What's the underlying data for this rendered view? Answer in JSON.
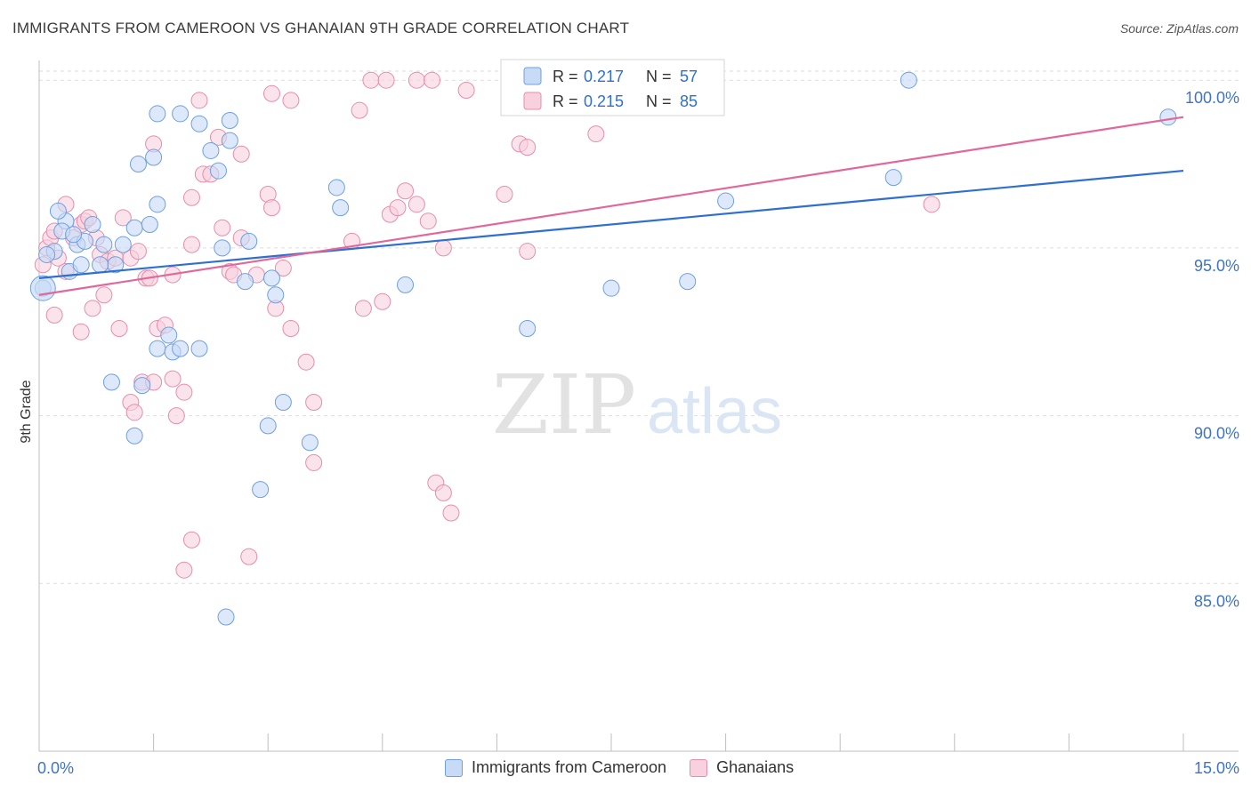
{
  "header": {
    "title": "IMMIGRANTS FROM CAMEROON VS GHANAIAN 9TH GRADE CORRELATION CHART",
    "source": "Source: ZipAtlas.com"
  },
  "watermark": {
    "zip": "ZIP",
    "atlas": "atlas"
  },
  "legend": {
    "r_label": "R =",
    "n_label": "N =",
    "rows": [
      {
        "r": "0.217",
        "n": "57"
      },
      {
        "r": "0.215",
        "n": "85"
      }
    ]
  },
  "bottom_legend": {
    "blue_label": "Immigrants from Cameroon",
    "pink_label": "Ghanaians"
  },
  "colors": {
    "blue_fill": "#c7dbf7",
    "blue_stroke": "#6f9fe0",
    "blue_line": "#2f6fcf",
    "pink_fill": "#f9d0dd",
    "pink_stroke": "#e58eaa",
    "pink_line": "#e0689a",
    "axis_text": "#3f73c8",
    "grid": "#dddddd"
  },
  "chart_data": {
    "type": "scatter",
    "title": "IMMIGRANTS FROM CAMEROON VS GHANAIAN 9TH GRADE CORRELATION CHART",
    "xlabel": "",
    "ylabel": "9th Grade",
    "xlim": [
      0,
      15
    ],
    "ylim": [
      80,
      100.8
    ],
    "x_tick_labels": [
      "0.0%",
      "15.0%"
    ],
    "y_ticks": [
      85,
      90,
      95,
      100
    ],
    "y_tick_labels": [
      "85.0%",
      "90.0%",
      "95.0%",
      "100.0%"
    ],
    "grid": true,
    "legend_position": "top-center",
    "series": [
      {
        "name": "Immigrants from Cameroon",
        "r": 0.217,
        "n": 57,
        "trend": [
          [
            0,
            94.1
          ],
          [
            15,
            97.3
          ]
        ],
        "points": [
          [
            0.05,
            93.8
          ],
          [
            0.2,
            94.9
          ],
          [
            0.35,
            95.8
          ],
          [
            0.5,
            95.1
          ],
          [
            0.6,
            95.2
          ],
          [
            0.25,
            96.1
          ],
          [
            0.4,
            94.3
          ],
          [
            0.55,
            94.5
          ],
          [
            0.3,
            95.5
          ],
          [
            0.7,
            95.7
          ],
          [
            0.85,
            95.1
          ],
          [
            1.0,
            94.5
          ],
          [
            1.1,
            95.1
          ],
          [
            1.25,
            95.6
          ],
          [
            0.8,
            94.5
          ],
          [
            1.45,
            95.7
          ],
          [
            1.55,
            96.3
          ],
          [
            1.5,
            97.7
          ],
          [
            1.3,
            97.5
          ],
          [
            1.55,
            99.0
          ],
          [
            1.85,
            99.0
          ],
          [
            2.1,
            98.7
          ],
          [
            2.25,
            97.9
          ],
          [
            2.35,
            97.3
          ],
          [
            2.5,
            98.2
          ],
          [
            2.5,
            98.8
          ],
          [
            2.4,
            95.0
          ],
          [
            2.7,
            94.0
          ],
          [
            2.75,
            95.2
          ],
          [
            3.05,
            94.1
          ],
          [
            3.1,
            93.6
          ],
          [
            2.1,
            92.0
          ],
          [
            1.55,
            92.0
          ],
          [
            1.75,
            91.9
          ],
          [
            1.85,
            92.0
          ],
          [
            1.7,
            92.4
          ],
          [
            0.95,
            91.0
          ],
          [
            1.35,
            90.9
          ],
          [
            1.25,
            89.4
          ],
          [
            3.2,
            90.4
          ],
          [
            3.0,
            89.7
          ],
          [
            3.55,
            89.2
          ],
          [
            2.9,
            87.8
          ],
          [
            2.45,
            84.0
          ],
          [
            3.9,
            96.8
          ],
          [
            3.95,
            96.2
          ],
          [
            4.8,
            93.9
          ],
          [
            6.4,
            92.6
          ],
          [
            7.5,
            93.8
          ],
          [
            8.5,
            94.0
          ],
          [
            9.0,
            96.4
          ],
          [
            11.2,
            97.1
          ],
          [
            11.4,
            100.0
          ],
          [
            14.8,
            98.9
          ],
          [
            6.75,
            99.3
          ],
          [
            0.1,
            94.8
          ],
          [
            0.45,
            95.4
          ]
        ]
      },
      {
        "name": "Ghanaians",
        "r": 0.215,
        "n": 85,
        "trend": [
          [
            0,
            93.6
          ],
          [
            15,
            98.9
          ]
        ],
        "points": [
          [
            0.05,
            94.5
          ],
          [
            0.1,
            95.0
          ],
          [
            0.15,
            95.3
          ],
          [
            0.2,
            95.5
          ],
          [
            0.25,
            94.7
          ],
          [
            0.35,
            94.3
          ],
          [
            0.45,
            95.3
          ],
          [
            0.55,
            95.7
          ],
          [
            0.6,
            95.8
          ],
          [
            0.65,
            95.9
          ],
          [
            0.75,
            95.3
          ],
          [
            0.8,
            94.8
          ],
          [
            0.9,
            94.6
          ],
          [
            1.0,
            94.7
          ],
          [
            1.1,
            95.9
          ],
          [
            1.2,
            94.7
          ],
          [
            1.3,
            94.9
          ],
          [
            1.4,
            94.1
          ],
          [
            1.45,
            94.1
          ],
          [
            1.5,
            98.1
          ],
          [
            0.35,
            96.3
          ],
          [
            0.7,
            93.2
          ],
          [
            0.85,
            93.6
          ],
          [
            0.55,
            92.5
          ],
          [
            1.05,
            92.6
          ],
          [
            1.2,
            90.4
          ],
          [
            1.25,
            90.1
          ],
          [
            1.35,
            91.0
          ],
          [
            1.5,
            91.0
          ],
          [
            1.55,
            92.6
          ],
          [
            1.75,
            91.1
          ],
          [
            1.8,
            90.0
          ],
          [
            1.9,
            90.7
          ],
          [
            2.0,
            96.5
          ],
          [
            2.15,
            97.2
          ],
          [
            2.25,
            97.2
          ],
          [
            2.35,
            98.3
          ],
          [
            2.4,
            95.6
          ],
          [
            2.5,
            94.3
          ],
          [
            2.55,
            94.2
          ],
          [
            2.65,
            95.3
          ],
          [
            2.65,
            97.8
          ],
          [
            2.85,
            94.2
          ],
          [
            3.0,
            96.6
          ],
          [
            3.05,
            96.2
          ],
          [
            3.1,
            93.2
          ],
          [
            3.2,
            94.4
          ],
          [
            3.3,
            92.6
          ],
          [
            3.5,
            91.6
          ],
          [
            3.6,
            90.4
          ],
          [
            3.6,
            88.6
          ],
          [
            4.1,
            95.2
          ],
          [
            4.2,
            99.1
          ],
          [
            4.25,
            93.2
          ],
          [
            4.5,
            93.4
          ],
          [
            4.6,
            96.0
          ],
          [
            4.7,
            96.2
          ],
          [
            4.8,
            96.7
          ],
          [
            4.95,
            96.3
          ],
          [
            5.1,
            95.8
          ],
          [
            5.3,
            95.0
          ],
          [
            5.2,
            88.0
          ],
          [
            5.3,
            87.7
          ],
          [
            5.4,
            87.1
          ],
          [
            2.1,
            99.4
          ],
          [
            3.05,
            99.6
          ],
          [
            3.3,
            99.4
          ],
          [
            4.35,
            100.0
          ],
          [
            4.55,
            100.0
          ],
          [
            4.95,
            100.0
          ],
          [
            5.15,
            100.0
          ],
          [
            5.6,
            99.7
          ],
          [
            6.1,
            96.6
          ],
          [
            6.3,
            98.1
          ],
          [
            6.4,
            98.0
          ],
          [
            6.4,
            94.9
          ],
          [
            7.3,
            98.4
          ],
          [
            11.7,
            96.3
          ],
          [
            2.0,
            86.3
          ],
          [
            1.9,
            85.4
          ],
          [
            2.75,
            85.8
          ],
          [
            1.75,
            94.2
          ],
          [
            0.2,
            93.0
          ],
          [
            1.65,
            92.7
          ],
          [
            2.0,
            95.1
          ]
        ]
      }
    ]
  }
}
